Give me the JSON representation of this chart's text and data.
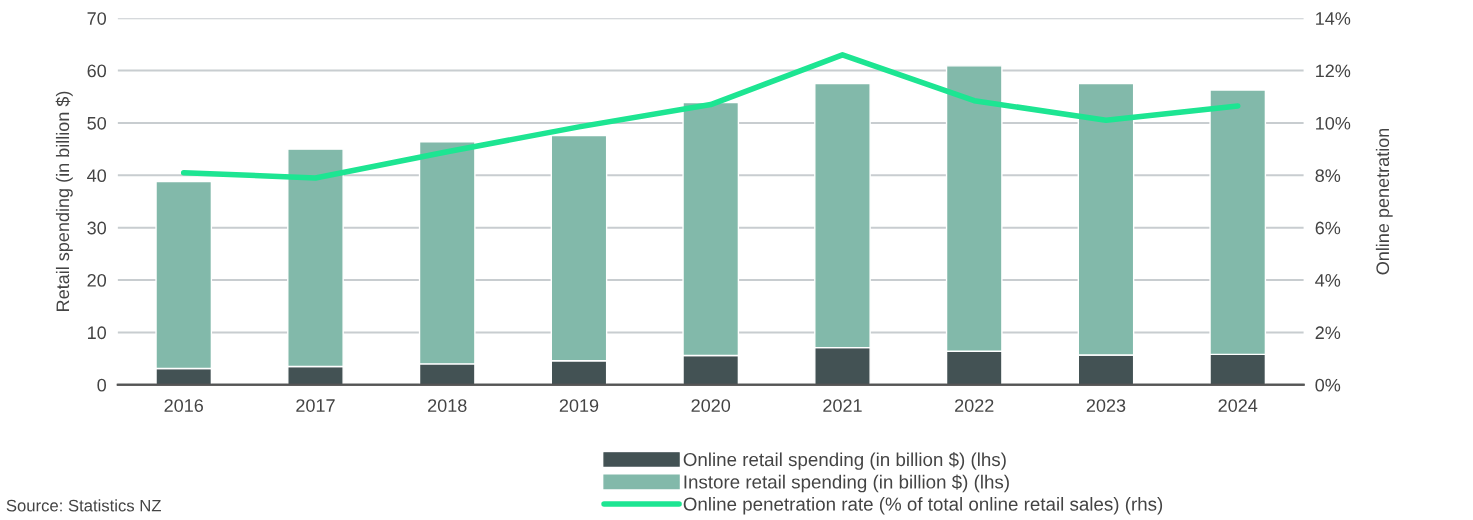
{
  "chart_data": {
    "type": "bar",
    "stacked": true,
    "categories": [
      "2016",
      "2017",
      "2018",
      "2019",
      "2020",
      "2021",
      "2022",
      "2023",
      "2024"
    ],
    "series": [
      {
        "name": "Online retail spending (in billion $) (lhs)",
        "color": "#435254",
        "values": [
          3.1,
          3.5,
          4.0,
          4.6,
          5.6,
          7.1,
          6.4,
          5.7,
          5.8
        ]
      },
      {
        "name": "Instore retail spending (in billion $) (lhs)",
        "color": "#82b9aa",
        "values": [
          35.7,
          41.5,
          42.4,
          43.0,
          48.3,
          50.4,
          54.5,
          51.8,
          50.5
        ]
      },
      {
        "name": "Online penetration rate (% of total online retail sales) (rhs)",
        "type": "line",
        "axis": "y2",
        "color": "#1de592",
        "values": [
          8.1,
          7.9,
          8.9,
          9.85,
          10.7,
          12.6,
          10.85,
          10.1,
          10.65
        ]
      }
    ],
    "ylabel": "Retail spending (in billion $)",
    "y2label": "Online penetration",
    "ylim": [
      0,
      70
    ],
    "yticks": [
      0,
      10,
      20,
      30,
      40,
      50,
      60,
      70
    ],
    "y2lim": [
      0,
      14
    ],
    "y2ticks": [
      {
        "value": 0,
        "label": "0%"
      },
      {
        "value": 2,
        "label": "2%"
      },
      {
        "value": 4,
        "label": "4%"
      },
      {
        "value": 6,
        "label": "6%"
      },
      {
        "value": 8,
        "label": "8%"
      },
      {
        "value": 10,
        "label": "10%"
      },
      {
        "value": 12,
        "label": "12%"
      },
      {
        "value": 14,
        "label": "14%"
      }
    ],
    "grid": "y",
    "legend": "bottom",
    "annotations": [
      "Source: Statistics NZ"
    ]
  }
}
